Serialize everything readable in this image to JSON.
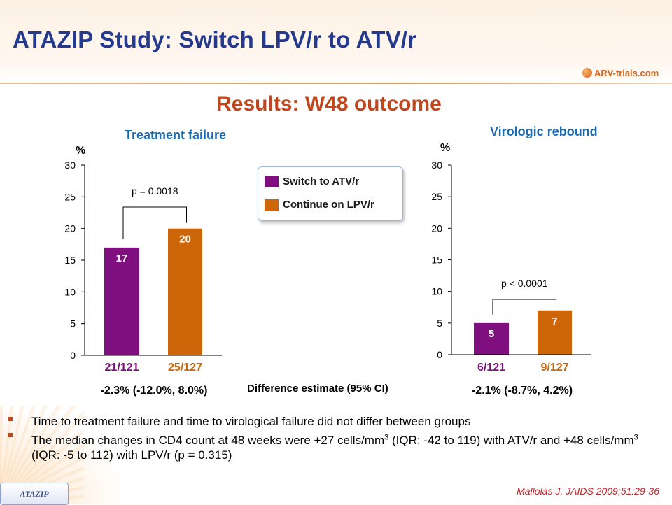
{
  "slide": {
    "title": "ATAZIP Study: Switch LPV/r to ATV/r",
    "subtitle": "Results: W48 outcome",
    "logo_text": "ARV-trials.com",
    "difference_label": "Difference estimate (95% CI)",
    "bullets": [
      "Time to treatment failure and time to virological failure did not differ between groups",
      "The median changes in CD4 count at 48 weeks were +27 cells/mm³ (IQR: -42 to 119) with ATV/r and +48 cells/mm³ (IQR: -5 to 112) with LPV/r (p = 0.315)"
    ],
    "footer_tag": "ATAZIP",
    "citation": "Mallolas J, JAIDS 2009;51:29-36"
  },
  "legend": [
    {
      "label": "Switch to ATV/r",
      "color": "#7f0f7e"
    },
    {
      "label": "Continue on LPV/r",
      "color": "#cc6609"
    }
  ],
  "chart_data": [
    {
      "type": "bar",
      "title": "Treatment failure",
      "ylabel": "%",
      "ylim": [
        0,
        30
      ],
      "yticks": [
        0,
        5,
        10,
        15,
        20,
        25,
        30
      ],
      "categories": [
        "21/121",
        "25/127"
      ],
      "values": [
        17,
        20
      ],
      "value_labels": [
        "17",
        "20"
      ],
      "colors": [
        "#7f0f7e",
        "#cc6609"
      ],
      "pvalue": "p = 0.0018",
      "difference": "-2.3% (-12.0%, 8.0%)"
    },
    {
      "type": "bar",
      "title": "Virologic rebound",
      "ylabel": "%",
      "ylim": [
        0,
        30
      ],
      "yticks": [
        0,
        5,
        10,
        15,
        20,
        25,
        30
      ],
      "categories": [
        "6/121",
        "9/127"
      ],
      "values": [
        5,
        7
      ],
      "value_labels": [
        "5",
        "7"
      ],
      "colors": [
        "#7f0f7e",
        "#cc6609"
      ],
      "pvalue": "p < 0.0001",
      "difference": "-2.1% (-8.7%, 4.2%)"
    }
  ]
}
